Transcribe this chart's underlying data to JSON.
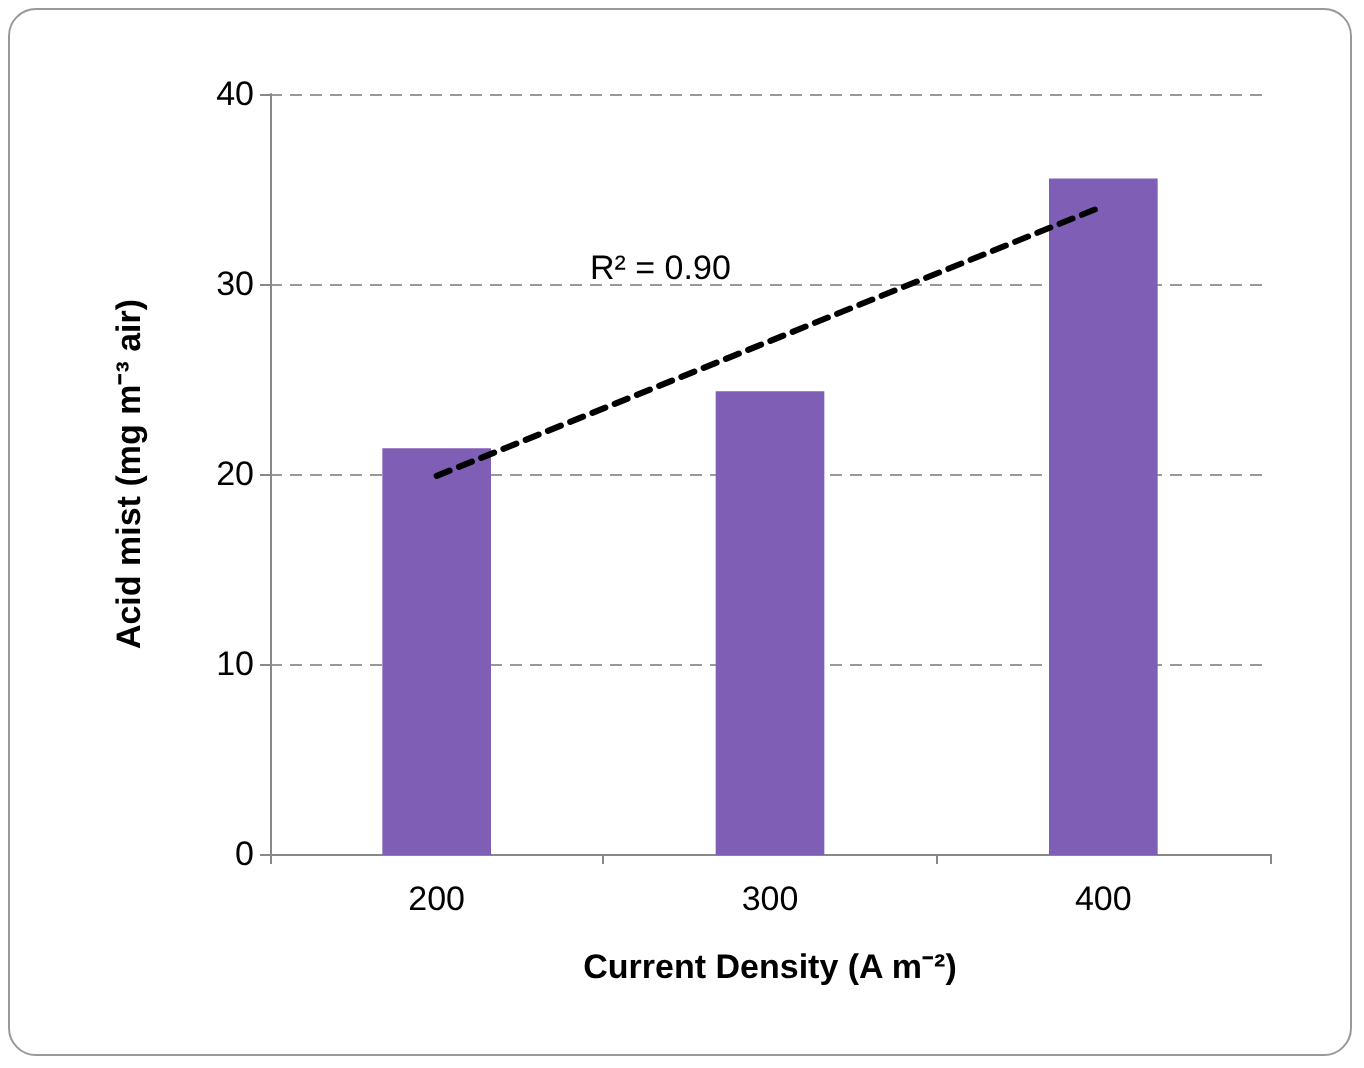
{
  "chart_data": {
    "type": "bar",
    "xlabel": "Current Density (A m⁻²)",
    "ylabel": "Acid mist (mg m⁻³ air)",
    "categories": [
      "200",
      "300",
      "400"
    ],
    "series": [
      {
        "color": "#7f5fb6",
        "values": [
          21.3,
          24.3,
          35.5
        ]
      },
      {
        "type": "line",
        "color": "#000000",
        "x": [
          "200",
          "400"
        ],
        "values": [
          19.9,
          34.1
        ],
        "line_style": "dashed",
        "marker": "none"
      }
    ],
    "annotations": [
      "R² = 0.90"
    ],
    "ylim": [
      0,
      40
    ],
    "yticks": [
      0,
      10,
      20,
      30,
      40
    ],
    "grid": "y"
  }
}
